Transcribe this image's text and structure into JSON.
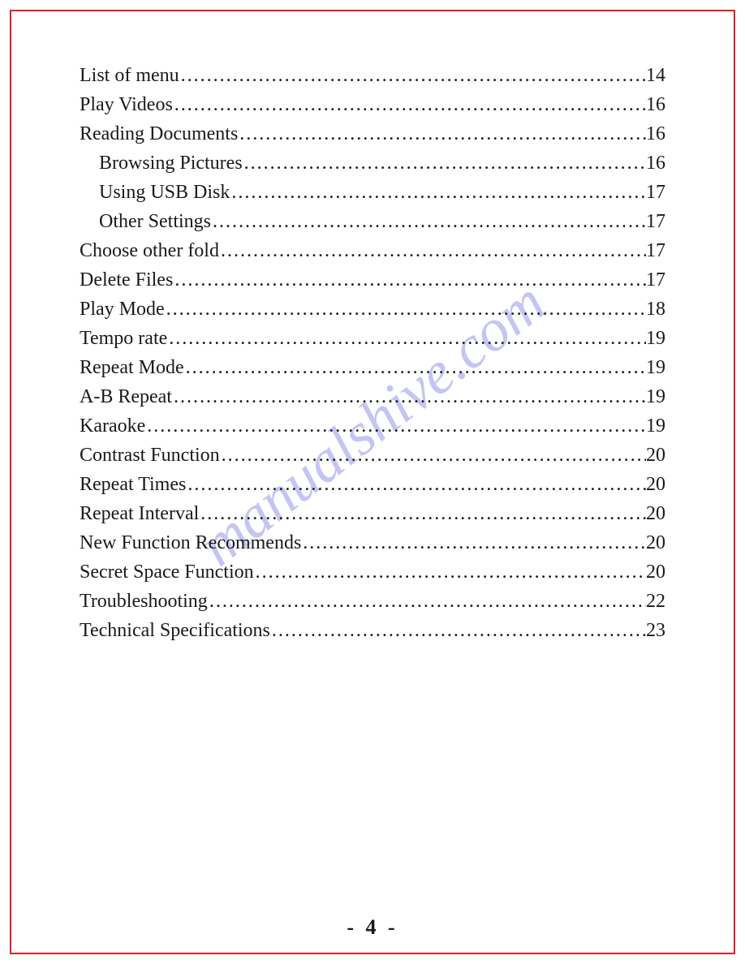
{
  "watermark_text": "manualshive.com",
  "page_number_display": "- 4 -",
  "border_color": "#d6232a",
  "text_color": "#1a1a1a",
  "watermark_color": "rgba(90, 90, 220, 0.35)",
  "font_family": "Times New Roman",
  "font_size_pt": 18,
  "toc": [
    {
      "title": "List of menu",
      "page": "14",
      "indent": false
    },
    {
      "title": "Play Videos",
      "page": "16",
      "indent": false
    },
    {
      "title": "Reading Documents",
      "page": "16",
      "indent": false
    },
    {
      "title": "Browsing Pictures",
      "page": "16",
      "indent": true
    },
    {
      "title": "Using USB Disk",
      "page": "17",
      "indent": true
    },
    {
      "title": "Other Settings",
      "page": "17",
      "indent": true
    },
    {
      "title": "Choose other fold",
      "page": "17",
      "indent": false
    },
    {
      "title": "Delete Files",
      "page": "17",
      "indent": false
    },
    {
      "title": "Play Mode",
      "page": "18",
      "indent": false
    },
    {
      "title": "Tempo rate",
      "page": "19",
      "indent": false
    },
    {
      "title": "Repeat Mode",
      "page": "19",
      "indent": false
    },
    {
      "title": "A-B Repeat",
      "page": "19",
      "indent": false
    },
    {
      "title": "Karaoke",
      "page": "19",
      "indent": false
    },
    {
      "title": "Contrast Function",
      "page": "20",
      "indent": false
    },
    {
      "title": "Repeat Times",
      "page": "20",
      "indent": false
    },
    {
      "title": "Repeat Interval",
      "page": "20",
      "indent": false
    },
    {
      "title": "New Function Recommends",
      "page": "20",
      "indent": false
    },
    {
      "title": "Secret Space Function",
      "page": "20",
      "indent": false
    },
    {
      "title": "Troubleshooting",
      "page": "22",
      "indent": false
    },
    {
      "title": "Technical Specifications",
      "page": "23",
      "indent": false
    }
  ]
}
